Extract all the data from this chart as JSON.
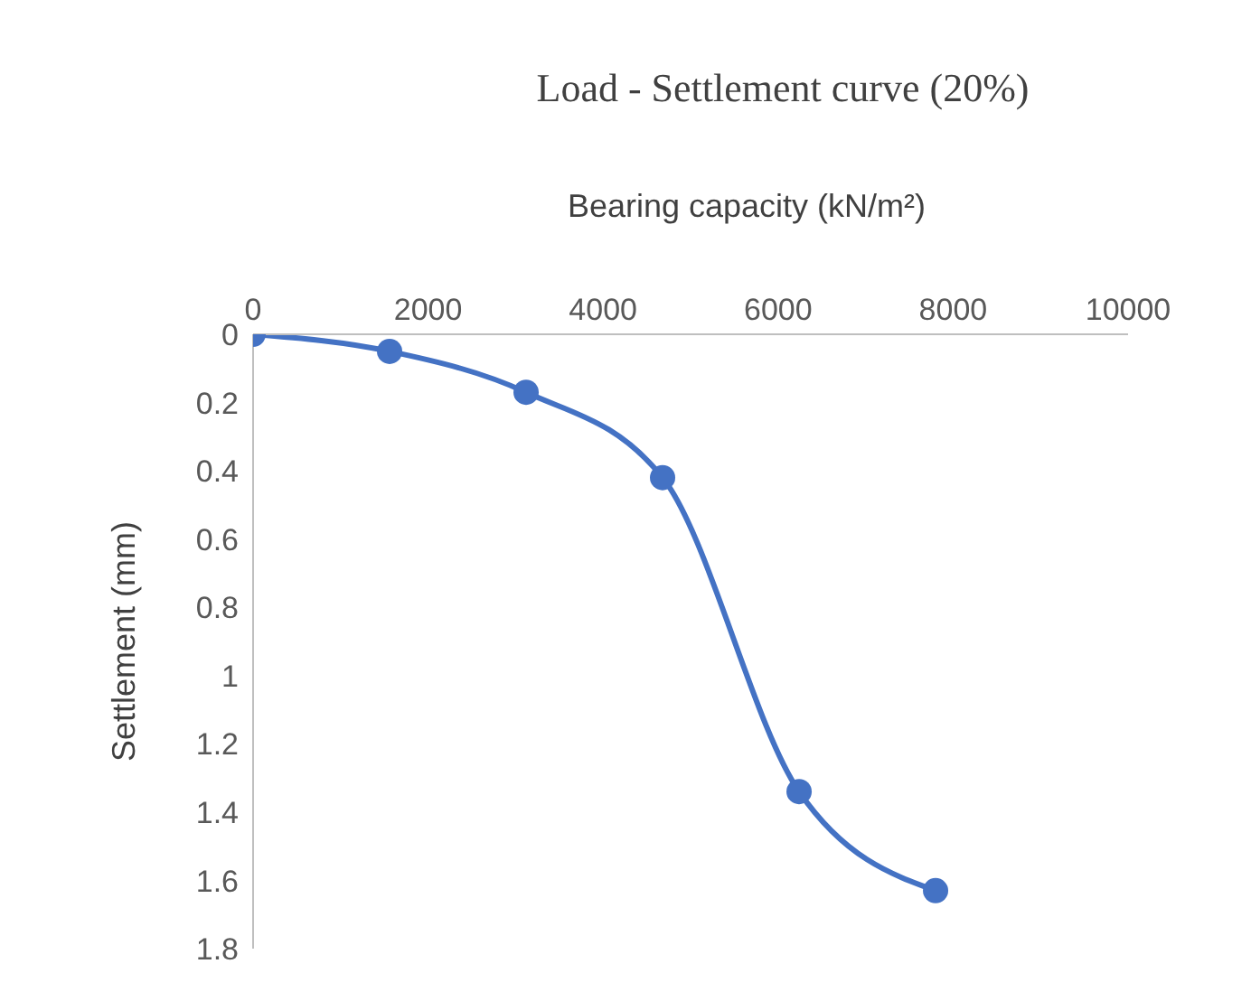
{
  "chart_data": {
    "type": "line",
    "title": "Load - Settlement curve (20%)",
    "xlabel": "Bearing capacity (kN/m²)",
    "ylabel": "Settlement (mm)",
    "x": [
      0,
      1560,
      3120,
      4680,
      6240,
      7800
    ],
    "series": [
      {
        "color": "#4472c4",
        "values": [
          0,
          0.05,
          0.17,
          0.42,
          1.34,
          1.63
        ]
      }
    ],
    "xlim": [
      0,
      10000
    ],
    "xticks": [
      0,
      2000,
      4000,
      6000,
      8000,
      10000
    ],
    "ylim": [
      1.8,
      0
    ],
    "yticks": [
      0,
      0.2,
      0.4,
      0.6,
      0.8,
      1,
      1.2,
      1.4,
      1.6,
      1.8
    ],
    "marker": "circle"
  }
}
